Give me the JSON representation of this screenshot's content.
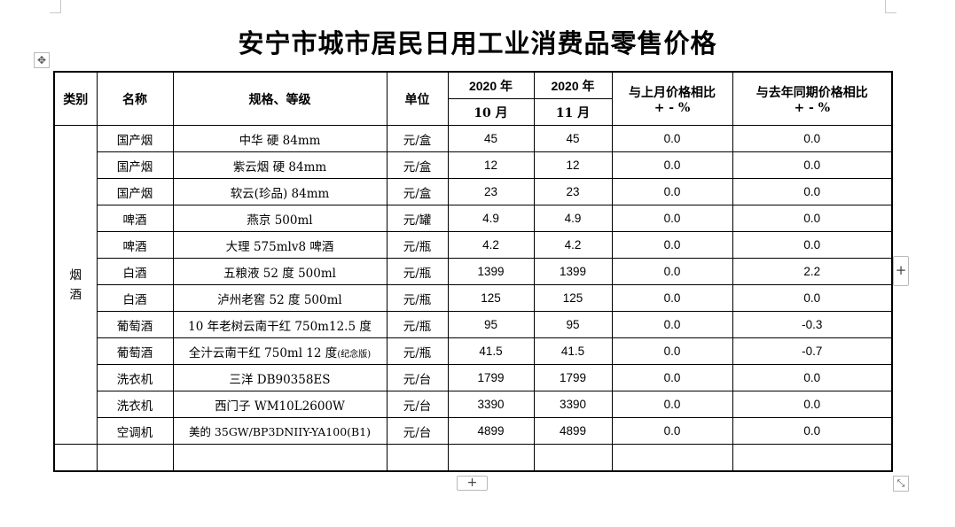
{
  "title": "安宁市城市居民日用工业消费品零售价格",
  "handles": {
    "move": "✥",
    "add_row": "+",
    "add_col": "+",
    "resize": "⤡"
  },
  "headers": {
    "category": "类别",
    "name": "名称",
    "spec": "规格、等级",
    "unit": "单位",
    "year1": "2020 年",
    "month1": "10 月",
    "year2": "2020 年",
    "month2": "11 月",
    "mom_line1": "与上月价格相比",
    "mom_line2": "+ - %",
    "yoy_line1": "与去年同期价格相比",
    "yoy_line2": "+ - %"
  },
  "category_label": [
    "烟",
    "酒"
  ],
  "rows": [
    {
      "name": "国产烟",
      "spec": "中华 硬 84mm",
      "unit": "元/盒",
      "oct": "45",
      "nov": "45",
      "mom": "0.0",
      "yoy": "0.0"
    },
    {
      "name": "国产烟",
      "spec": "紫云烟 硬 84mm",
      "unit": "元/盒",
      "oct": "12",
      "nov": "12",
      "mom": "0.0",
      "yoy": "0.0"
    },
    {
      "name": "国产烟",
      "spec": "软云(珍品) 84mm",
      "unit": "元/盒",
      "oct": "23",
      "nov": "23",
      "mom": "0.0",
      "yoy": "0.0"
    },
    {
      "name": "啤酒",
      "spec": "燕京 500ml",
      "unit": "元/罐",
      "oct": "4.9",
      "nov": "4.9",
      "mom": "0.0",
      "yoy": "0.0"
    },
    {
      "name": "啤酒",
      "spec": "大理 575mlv8 啤酒",
      "unit": "元/瓶",
      "oct": "4.2",
      "nov": "4.2",
      "mom": "0.0",
      "yoy": "0.0"
    },
    {
      "name": "白酒",
      "spec": "五粮液 52 度 500ml",
      "unit": "元/瓶",
      "oct": "1399",
      "nov": "1399",
      "mom": "0.0",
      "yoy": "2.2"
    },
    {
      "name": "白酒",
      "spec": "泸州老窖 52 度 500ml",
      "unit": "元/瓶",
      "oct": "125",
      "nov": "125",
      "mom": "0.0",
      "yoy": "0.0"
    },
    {
      "name": "葡萄酒",
      "spec": "10 年老树云南干红 750m12.5 度",
      "unit": "元/瓶",
      "oct": "95",
      "nov": "95",
      "mom": "0.0",
      "yoy": "-0.3"
    },
    {
      "name": "葡萄酒",
      "spec": "全汁云南干红 750ml 12 度",
      "spec_note": "(纪念版)",
      "unit": "元/瓶",
      "oct": "41.5",
      "nov": "41.5",
      "mom": "0.0",
      "yoy": "-0.7"
    },
    {
      "name": "洗衣机",
      "spec": "三洋 DB90358ES",
      "unit": "元/台",
      "oct": "1799",
      "nov": "1799",
      "mom": "0.0",
      "yoy": "0.0"
    },
    {
      "name": "洗衣机",
      "spec": "西门子 WM10L2600W",
      "unit": "元/台",
      "oct": "3390",
      "nov": "3390",
      "mom": "0.0",
      "yoy": "0.0"
    },
    {
      "name": "空调机",
      "spec": "美的 35GW/BP3DNIIY-YA100(B1)",
      "unit": "元/台",
      "oct": "4899",
      "nov": "4899",
      "mom": "0.0",
      "yoy": "0.0"
    }
  ]
}
